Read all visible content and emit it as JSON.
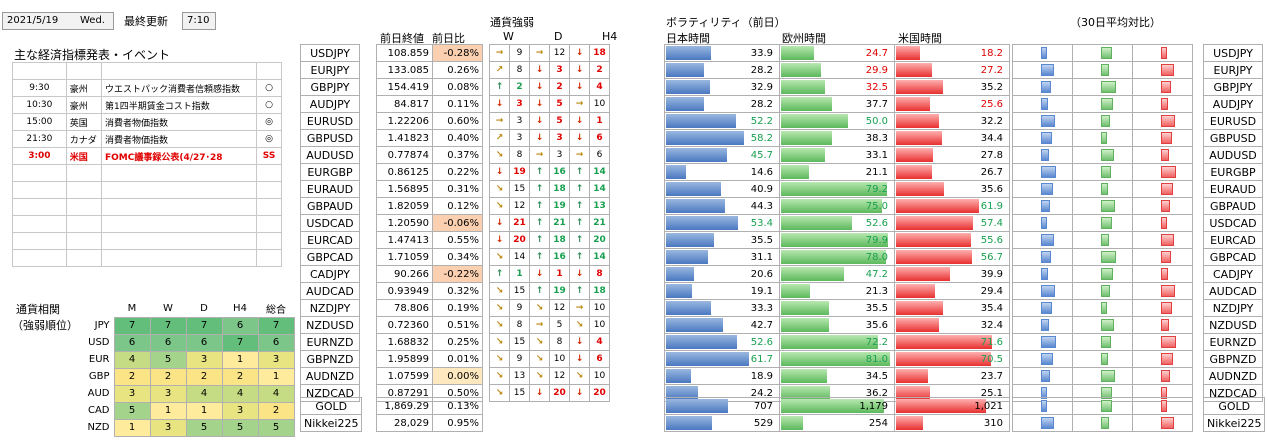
{
  "header": {
    "date": "2021/5/19",
    "weekday": "Wed.",
    "last_update_label": "最終更新",
    "time": "7:10"
  },
  "events": {
    "title": "主な経済指標発表・イベント",
    "rows": [
      {
        "time": "9:30",
        "country": "豪州",
        "name": "ウエストパック消費者信頼感指数",
        "mark": "○",
        "hl": false
      },
      {
        "time": "10:30",
        "country": "豪州",
        "name": "第1四半期賃金コスト指数",
        "mark": "○",
        "hl": false
      },
      {
        "time": "15:00",
        "country": "英国",
        "name": "消費者物価指数",
        "mark": "◎",
        "hl": false
      },
      {
        "time": "21:30",
        "country": "カナダ",
        "name": "消費者物価指数",
        "mark": "◎",
        "hl": false
      },
      {
        "time": "3:00",
        "country": "米国",
        "name": "FOMC議事録公表(4/27･28",
        "mark": "SS",
        "hl": true
      }
    ]
  },
  "prices": {
    "col_close": "前日終値",
    "col_change": "前日比",
    "rows": [
      {
        "pair": "USDJPY",
        "close": "108.859",
        "chg": "-0.28%"
      },
      {
        "pair": "EURJPY",
        "close": "133.085",
        "chg": "0.26%"
      },
      {
        "pair": "GBPJPY",
        "close": "154.419",
        "chg": "0.08%"
      },
      {
        "pair": "AUDJPY",
        "close": "84.817",
        "chg": "0.11%"
      },
      {
        "pair": "EURUSD",
        "close": "1.22206",
        "chg": "0.60%"
      },
      {
        "pair": "GBPUSD",
        "close": "1.41823",
        "chg": "0.40%"
      },
      {
        "pair": "AUDUSD",
        "close": "0.77874",
        "chg": "0.37%"
      },
      {
        "pair": "EURGBP",
        "close": "0.86125",
        "chg": "0.22%"
      },
      {
        "pair": "EURAUD",
        "close": "1.56895",
        "chg": "0.31%"
      },
      {
        "pair": "GBPAUD",
        "close": "1.82059",
        "chg": "0.12%"
      },
      {
        "pair": "USDCAD",
        "close": "1.20590",
        "chg": "-0.06%"
      },
      {
        "pair": "EURCAD",
        "close": "1.47413",
        "chg": "0.55%"
      },
      {
        "pair": "GBPCAD",
        "close": "1.71059",
        "chg": "0.34%"
      },
      {
        "pair": "CADJPY",
        "close": "90.266",
        "chg": "-0.22%"
      },
      {
        "pair": "AUDCAD",
        "close": "0.93949",
        "chg": "0.32%"
      },
      {
        "pair": "NZDJPY",
        "close": "78.806",
        "chg": "0.19%"
      },
      {
        "pair": "NZDUSD",
        "close": "0.72360",
        "chg": "0.51%"
      },
      {
        "pair": "EURNZD",
        "close": "1.68832",
        "chg": "0.25%"
      },
      {
        "pair": "GBPNZD",
        "close": "1.95899",
        "chg": "0.01%"
      },
      {
        "pair": "AUDNZD",
        "close": "1.07599",
        "chg": "0.00%"
      },
      {
        "pair": "NZDCAD",
        "close": "0.87291",
        "chg": "0.50%"
      }
    ],
    "extra": [
      {
        "pair": "GOLD",
        "close": "1,869.29",
        "chg": "0.13%"
      },
      {
        "pair": "Nikkei225",
        "close": "28,029",
        "chg": "0.95%"
      }
    ]
  },
  "strength": {
    "title": "通貨強弱",
    "col_w": "W",
    "col_d": "D",
    "col_h4": "H4",
    "rows": [
      [
        "→",
        "9",
        "→",
        "12",
        "↓",
        "18"
      ],
      [
        "↗",
        "8",
        "↓",
        "3",
        "↓",
        "2"
      ],
      [
        "↑",
        "2",
        "↓",
        "2",
        "↓",
        "4"
      ],
      [
        "↓",
        "3",
        "↓",
        "5",
        "→",
        "10"
      ],
      [
        "→",
        "3",
        "↓",
        "5",
        "↓",
        "1"
      ],
      [
        "↗",
        "3",
        "↓",
        "3",
        "↓",
        "6"
      ],
      [
        "↘",
        "8",
        "→",
        "3",
        "→",
        "6"
      ],
      [
        "↓",
        "19",
        "↑",
        "16",
        "↑",
        "14"
      ],
      [
        "↘",
        "15",
        "↑",
        "18",
        "↑",
        "14"
      ],
      [
        "↘",
        "12",
        "↑",
        "19",
        "↑",
        "13"
      ],
      [
        "↓",
        "21",
        "↑",
        "21",
        "↑",
        "21"
      ],
      [
        "↓",
        "20",
        "↑",
        "18",
        "↑",
        "20"
      ],
      [
        "↘",
        "14",
        "↑",
        "16",
        "↑",
        "14"
      ],
      [
        "↑",
        "1",
        "↓",
        "1",
        "↓",
        "8"
      ],
      [
        "↘",
        "15",
        "↑",
        "19",
        "↑",
        "18"
      ],
      [
        "↘",
        "9",
        "↘",
        "12",
        "→",
        "10"
      ],
      [
        "↘",
        "8",
        "→",
        "5",
        "↘",
        "10"
      ],
      [
        "↘",
        "15",
        "↘",
        "8",
        "↓",
        "4"
      ],
      [
        "↘",
        "9",
        "↘",
        "10",
        "↓",
        "6"
      ],
      [
        "↘",
        "13",
        "↘",
        "12",
        "↘",
        "10"
      ],
      [
        "↘",
        "15",
        "↓",
        "20",
        "↓",
        "20"
      ]
    ]
  },
  "volatility": {
    "title": "ボラティリティ（前日）",
    "col_jp": "日本時間",
    "col_eu": "欧州時間",
    "col_us": "米国時間",
    "compare_title": "（30日平均対比）",
    "rows": [
      [
        "33.9",
        "24.7",
        "18.2"
      ],
      [
        "28.2",
        "29.9",
        "27.2"
      ],
      [
        "32.9",
        "32.5",
        "35.2"
      ],
      [
        "28.2",
        "37.7",
        "25.6"
      ],
      [
        "52.2",
        "50.0",
        "32.2"
      ],
      [
        "58.2",
        "38.3",
        "34.4"
      ],
      [
        "45.7",
        "33.1",
        "27.8"
      ],
      [
        "14.6",
        "21.1",
        "26.7"
      ],
      [
        "40.9",
        "79.2",
        "35.6"
      ],
      [
        "44.3",
        "75.0",
        "61.9"
      ],
      [
        "53.4",
        "52.6",
        "57.4"
      ],
      [
        "35.5",
        "79.9",
        "55.6"
      ],
      [
        "31.1",
        "78.0",
        "56.7"
      ],
      [
        "20.6",
        "47.2",
        "39.9"
      ],
      [
        "19.1",
        "21.3",
        "29.4"
      ],
      [
        "33.3",
        "35.5",
        "35.4"
      ],
      [
        "42.7",
        "35.6",
        "32.4"
      ],
      [
        "52.6",
        "72.2",
        "71.6"
      ],
      [
        "61.7",
        "81.0",
        "70.5"
      ],
      [
        "18.9",
        "34.5",
        "23.7"
      ],
      [
        "24.2",
        "36.2",
        "25.1"
      ]
    ],
    "extra": [
      [
        "707",
        "1,179",
        "1,021"
      ],
      [
        "529",
        "254",
        "310"
      ]
    ]
  },
  "ranking": {
    "title1": "通貨相関",
    "title2": "（強弱順位）",
    "cols": [
      "M",
      "W",
      "D",
      "H4",
      "総合"
    ],
    "rows": [
      {
        "cur": "JPY",
        "v": [
          "7",
          "7",
          "7",
          "6",
          "7"
        ]
      },
      {
        "cur": "USD",
        "v": [
          "6",
          "6",
          "6",
          "7",
          "6"
        ]
      },
      {
        "cur": "EUR",
        "v": [
          "4",
          "5",
          "3",
          "1",
          "3"
        ]
      },
      {
        "cur": "GBP",
        "v": [
          "2",
          "2",
          "2",
          "2",
          "1"
        ]
      },
      {
        "cur": "AUD",
        "v": [
          "3",
          "3",
          "4",
          "4",
          "4"
        ]
      },
      {
        "cur": "CAD",
        "v": [
          "5",
          "1",
          "1",
          "3",
          "2"
        ]
      },
      {
        "cur": "NZD",
        "v": [
          "1",
          "3",
          "5",
          "5",
          "5"
        ]
      }
    ]
  }
}
